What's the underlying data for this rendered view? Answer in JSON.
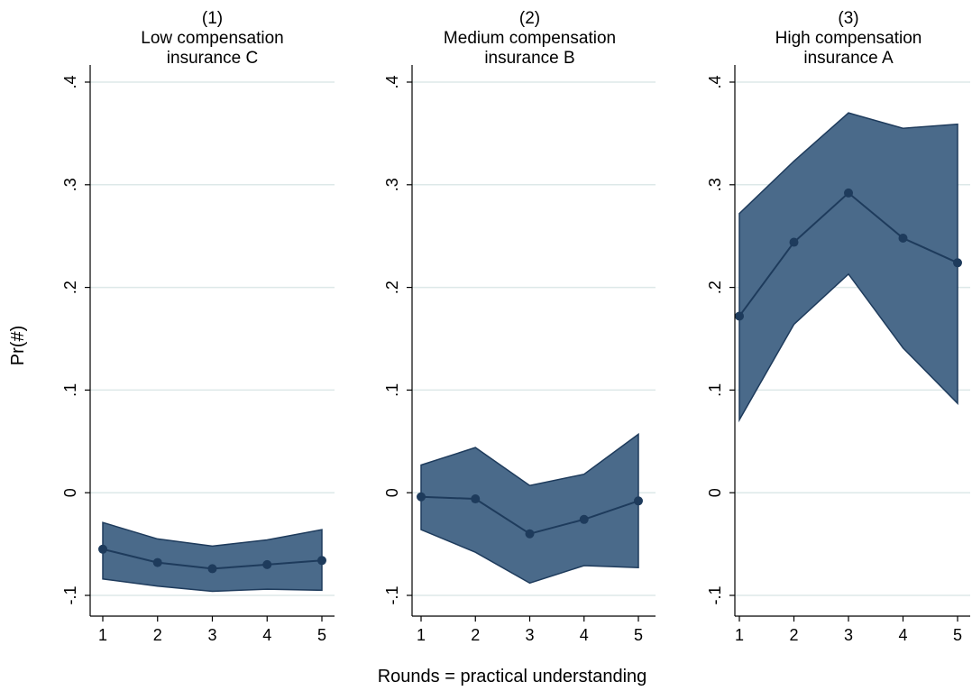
{
  "chart_data": {
    "type": "line",
    "ylabel": "Pr(#)",
    "xlabel": "Rounds = practical understanding",
    "x": [
      1,
      2,
      3,
      4,
      5
    ],
    "ylim": [
      -0.1,
      0.4
    ],
    "yticks": [
      -0.1,
      0,
      0.1,
      0.2,
      0.3,
      0.4
    ],
    "ytick_labels": [
      "-.1",
      "0",
      ".1",
      ".2",
      ".3",
      ".4"
    ],
    "xticks": [
      1,
      2,
      3,
      4,
      5
    ],
    "xtick_labels": [
      "1",
      "2",
      "3",
      "4",
      "5"
    ],
    "grid": true,
    "band": "confidence interval",
    "colors": {
      "band": "#4a6a8a",
      "line": "#1e3b5c",
      "grid": "#dde8e8"
    },
    "panels": [
      {
        "title_lines": [
          "(1)",
          "Low compensation",
          "insurance C"
        ],
        "values": [
          -0.055,
          -0.068,
          -0.074,
          -0.07,
          -0.066
        ],
        "upper": [
          -0.029,
          -0.045,
          -0.052,
          -0.046,
          -0.036
        ],
        "lower": [
          -0.084,
          -0.091,
          -0.096,
          -0.094,
          -0.095
        ]
      },
      {
        "title_lines": [
          "(2)",
          "Medium compensation",
          "insurance B"
        ],
        "values": [
          -0.004,
          -0.006,
          -0.04,
          -0.026,
          -0.008
        ],
        "upper": [
          0.027,
          0.044,
          0.007,
          0.018,
          0.057
        ],
        "lower": [
          -0.036,
          -0.058,
          -0.088,
          -0.071,
          -0.073
        ]
      },
      {
        "title_lines": [
          "(3)",
          "High compensation",
          "insurance A"
        ],
        "values": [
          0.172,
          0.244,
          0.292,
          0.248,
          0.224
        ],
        "upper": [
          0.272,
          0.323,
          0.37,
          0.355,
          0.359
        ],
        "lower": [
          0.071,
          0.164,
          0.213,
          0.141,
          0.087
        ]
      }
    ]
  }
}
